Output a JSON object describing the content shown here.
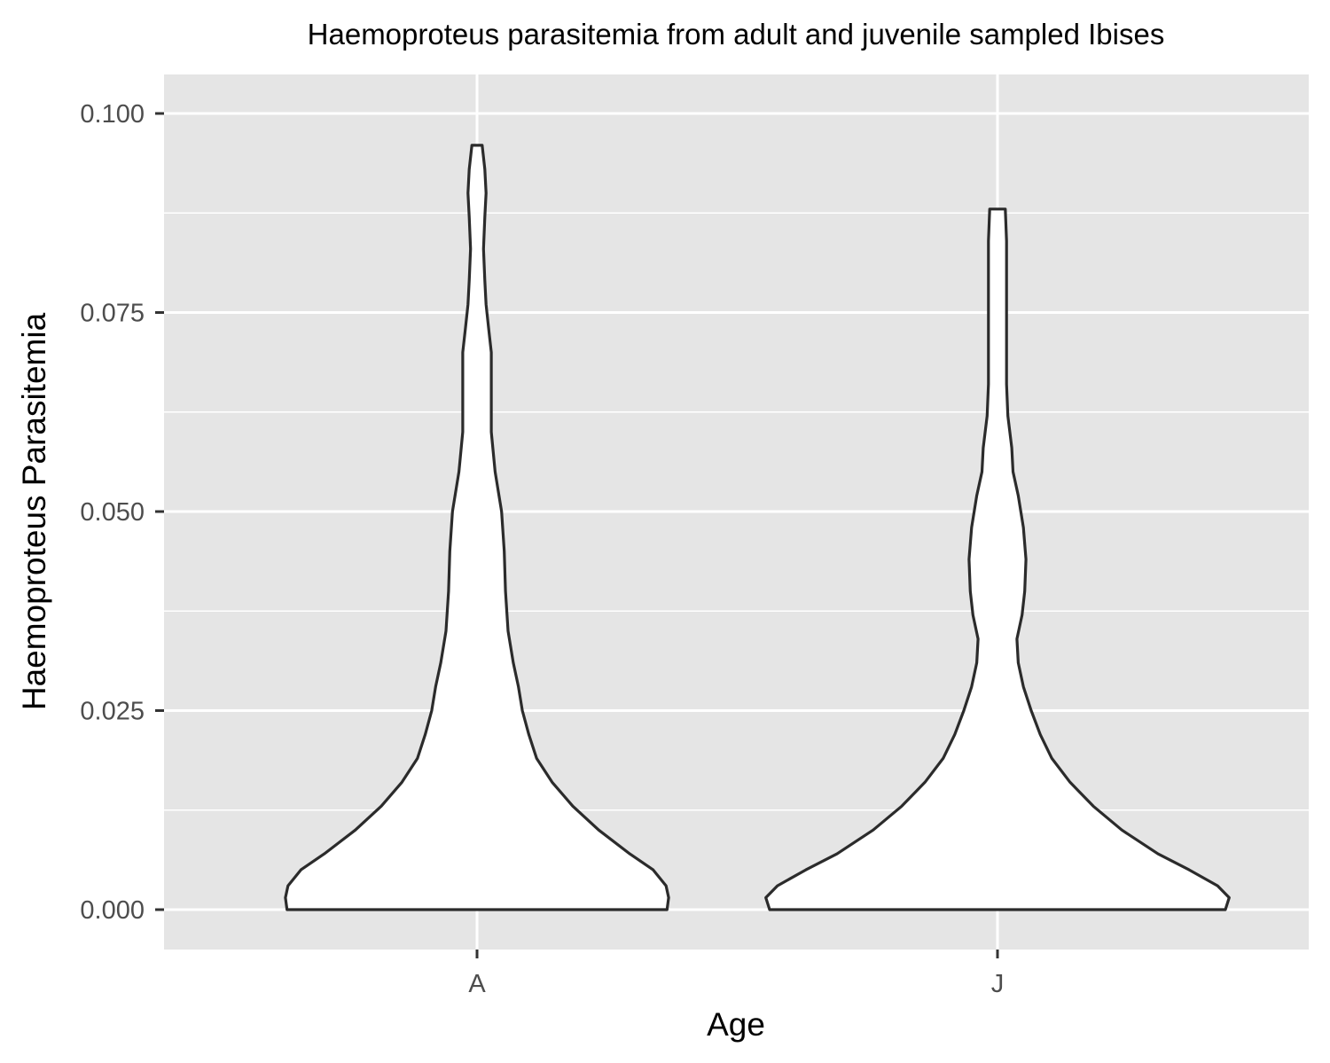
{
  "chart_data": {
    "type": "violin",
    "title": "Haemoproteus parasitemia from adult and juvenile sampled Ibises",
    "xlabel": "Age",
    "ylabel": "Haemoproteus Parasitemia",
    "categories": [
      "A",
      "J"
    ],
    "ylim": [
      -0.001,
      0.1045
    ],
    "yticks": [
      0.0,
      0.025,
      0.05,
      0.075,
      0.1
    ],
    "ytick_labels": [
      "0.000",
      "0.025",
      "0.050",
      "0.075",
      "0.100"
    ],
    "grid": true,
    "legend": "none",
    "series": [
      {
        "category": "A",
        "range": [
          0.0,
          0.096
        ],
        "density_profile": [
          [
            0.0,
            0.734
          ],
          [
            0.0015,
            0.74
          ],
          [
            0.003,
            0.73
          ],
          [
            0.005,
            0.68
          ],
          [
            0.007,
            0.59
          ],
          [
            0.01,
            0.47
          ],
          [
            0.013,
            0.37
          ],
          [
            0.016,
            0.29
          ],
          [
            0.019,
            0.23
          ],
          [
            0.022,
            0.2
          ],
          [
            0.025,
            0.175
          ],
          [
            0.028,
            0.16
          ],
          [
            0.031,
            0.14
          ],
          [
            0.035,
            0.12
          ],
          [
            0.04,
            0.11
          ],
          [
            0.045,
            0.105
          ],
          [
            0.05,
            0.095
          ],
          [
            0.055,
            0.07
          ],
          [
            0.06,
            0.055
          ],
          [
            0.065,
            0.055
          ],
          [
            0.07,
            0.055
          ],
          [
            0.073,
            0.045
          ],
          [
            0.076,
            0.035
          ],
          [
            0.079,
            0.03
          ],
          [
            0.083,
            0.025
          ],
          [
            0.087,
            0.03
          ],
          [
            0.09,
            0.035
          ],
          [
            0.093,
            0.03
          ],
          [
            0.096,
            0.02
          ]
        ]
      },
      {
        "category": "J",
        "range": [
          0.0,
          0.088
        ],
        "density_profile": [
          [
            0.0,
            0.88
          ],
          [
            0.0015,
            0.895
          ],
          [
            0.003,
            0.85
          ],
          [
            0.005,
            0.74
          ],
          [
            0.007,
            0.62
          ],
          [
            0.01,
            0.48
          ],
          [
            0.013,
            0.37
          ],
          [
            0.016,
            0.28
          ],
          [
            0.019,
            0.21
          ],
          [
            0.022,
            0.165
          ],
          [
            0.025,
            0.13
          ],
          [
            0.028,
            0.1
          ],
          [
            0.031,
            0.08
          ],
          [
            0.034,
            0.075
          ],
          [
            0.037,
            0.095
          ],
          [
            0.04,
            0.105
          ],
          [
            0.044,
            0.11
          ],
          [
            0.048,
            0.1
          ],
          [
            0.052,
            0.08
          ],
          [
            0.055,
            0.06
          ],
          [
            0.058,
            0.055
          ],
          [
            0.062,
            0.04
          ],
          [
            0.066,
            0.035
          ],
          [
            0.07,
            0.035
          ],
          [
            0.075,
            0.035
          ],
          [
            0.08,
            0.035
          ],
          [
            0.084,
            0.035
          ],
          [
            0.088,
            0.03
          ]
        ]
      }
    ]
  }
}
